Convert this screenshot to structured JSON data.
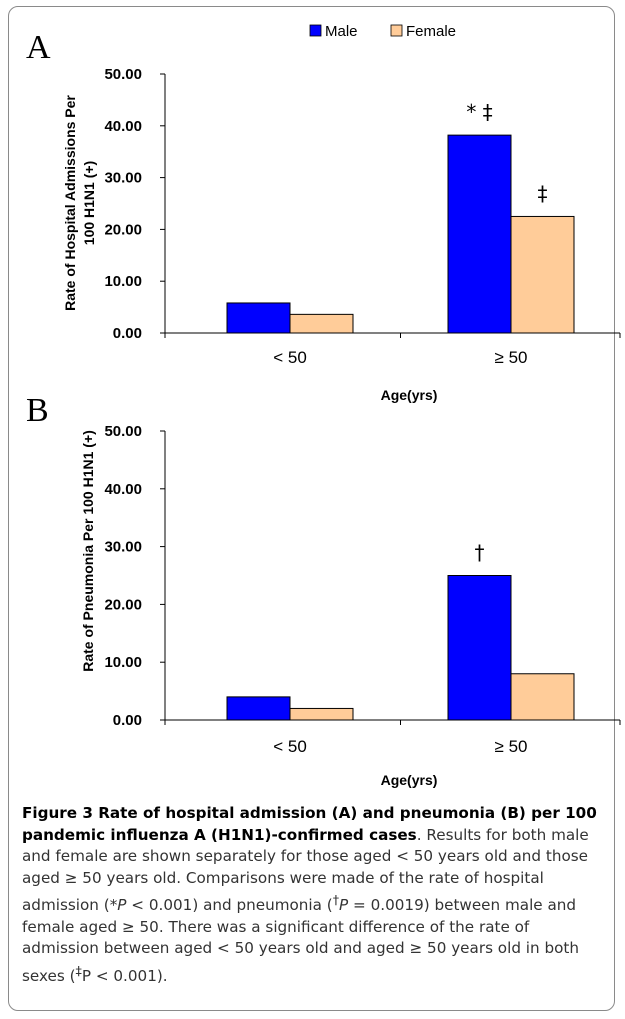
{
  "chart_data": [
    {
      "panel": "A",
      "type": "bar",
      "categories": [
        "< 50",
        "≥ 50"
      ],
      "series": [
        {
          "name": "Male",
          "values": [
            5.8,
            38.2
          ]
        },
        {
          "name": "Female",
          "values": [
            3.6,
            22.5
          ]
        }
      ],
      "ylim": [
        0,
        50
      ],
      "yticks": [
        "0.00",
        "10.00",
        "20.00",
        "30.00",
        "40.00",
        "50.00"
      ],
      "ylabel_line1": "Rate of Hospital Admissions Per",
      "ylabel_line2": "100 H1N1 (+)",
      "xlabel": "Age(yrs)",
      "annotations": [
        {
          "category": 1,
          "series": 0,
          "text": "* ‡"
        },
        {
          "category": 1,
          "series": 1,
          "text": "‡"
        }
      ],
      "legend": "top",
      "grid": false
    },
    {
      "panel": "B",
      "type": "bar",
      "categories": [
        "< 50",
        "≥ 50"
      ],
      "series": [
        {
          "name": "Male",
          "values": [
            4.0,
            25.0
          ]
        },
        {
          "name": "Female",
          "values": [
            2.0,
            8.0
          ]
        }
      ],
      "ylim": [
        0,
        50
      ],
      "yticks": [
        "0.00",
        "10.00",
        "20.00",
        "30.00",
        "40.00",
        "50.00"
      ],
      "ylabel_line1": "Rate of Pneumonia Per 100 H1N1 (+)",
      "xlabel": "Age(yrs)",
      "annotations": [
        {
          "category": 1,
          "series": 0,
          "text": "†"
        }
      ],
      "grid": false
    }
  ],
  "colors": {
    "male": "#0000ff",
    "female": "#ffcc99",
    "axis": "#000000"
  },
  "legend": {
    "male": "Male",
    "female": "Female"
  },
  "panel_labels": {
    "a": "A",
    "b": "B"
  },
  "caption": {
    "title": "Figure 3 Rate of hospital admission (A) and pneumonia (B) per 100 pandemic influenza A (H1N1)-confirmed cases",
    "body_1": ". Results for both male and female are shown separately for those aged < 50 years old and those aged ≥ 50 years old. Comparisons were made of the rate of hospital admission (",
    "sym_1": "*P",
    "body_2": " < 0.001) and pneumonia (",
    "sym_2_sup": "†",
    "sym_2": "P",
    "body_3": " = 0.0019) between male and female aged ≥ 50. There was a significant difference of the rate of admission between aged < 50 years old and aged ≥ 50 years old in both sexes (",
    "sym_3_sup": "‡",
    "body_4": "P < 0.001)."
  }
}
